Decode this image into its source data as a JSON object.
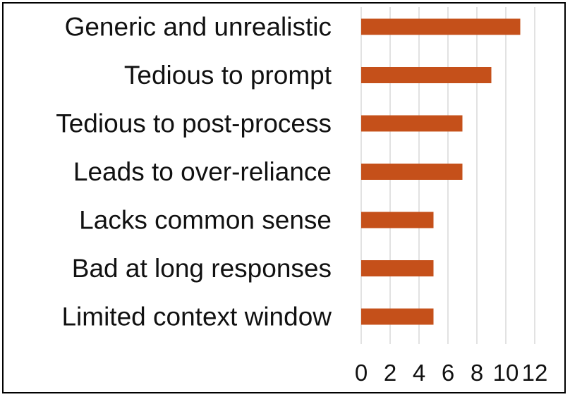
{
  "chart_data": {
    "type": "bar",
    "orientation": "horizontal",
    "categories": [
      "Generic and unrealistic",
      "Tedious to prompt",
      "Tedious to post-process",
      "Leads to over-reliance",
      "Lacks common sense",
      "Bad at long responses",
      "Limited context window"
    ],
    "values": [
      11,
      9,
      7,
      7,
      5,
      5,
      5
    ],
    "xlim": [
      0,
      12
    ],
    "x_ticks": [
      0,
      2,
      4,
      6,
      8,
      10,
      12
    ],
    "grid": "vertical",
    "legend": "none",
    "bar_color": "#c5501a"
  }
}
